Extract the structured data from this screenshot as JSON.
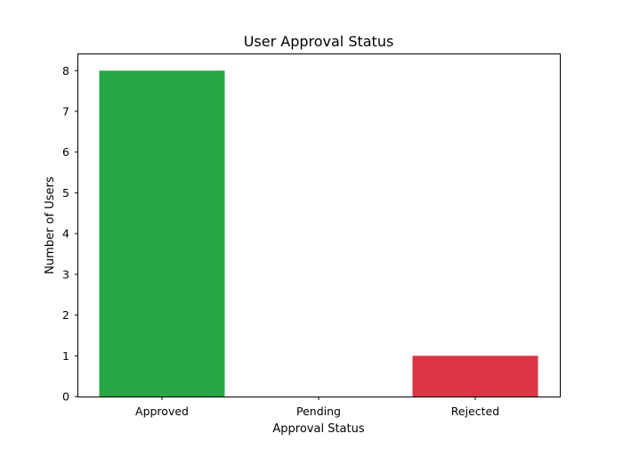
{
  "chart_data": {
    "type": "bar",
    "title": "User Approval Status",
    "xlabel": "Approval Status",
    "ylabel": "Number of Users",
    "categories": [
      "Approved",
      "Pending",
      "Rejected"
    ],
    "values": [
      8,
      0,
      1
    ],
    "colors": [
      "#28a745",
      "#ffc107",
      "#dc3545"
    ],
    "ylim": [
      0,
      8.4
    ],
    "yticks": [
      0,
      1,
      2,
      3,
      4,
      5,
      6,
      7,
      8
    ],
    "grid": false,
    "legend": "none"
  }
}
